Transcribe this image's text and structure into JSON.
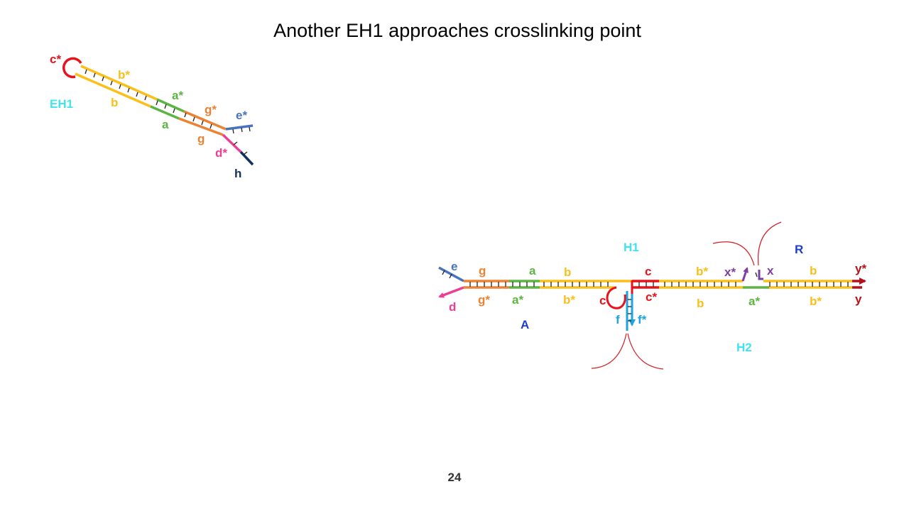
{
  "title": "Another EH1 approaches crosslinking point",
  "page_number": "24",
  "colors": {
    "red": "#e8121c",
    "yellow": "#fbbf1a",
    "green": "#5cb443",
    "orange": "#ec8233",
    "blue": "#4874be",
    "pink": "#ec3e93",
    "navy": "#13305f",
    "cyan": "#3fe4f0",
    "darkblue": "#1e3ec8",
    "lightblue": "#1ea3df",
    "purple": "#7c3da4",
    "darkred": "#b4121a",
    "tick": "#222222",
    "arc": "#d41c24"
  },
  "eh1_labels": {
    "c_star": "c*",
    "b_star": "b*",
    "b": "b",
    "name": "EH1",
    "a_star": "a*",
    "a": "a",
    "g_star": "g*",
    "g": "g",
    "e_star": "e*",
    "d_star": "d*",
    "h": "h"
  },
  "complex_labels": {
    "H1": "H1",
    "R": "R",
    "H2": "H2",
    "A": "A",
    "e": "e",
    "g": "g",
    "a": "a",
    "b": "b",
    "c": "c",
    "b_star_top": "b*",
    "x_star": "x*",
    "x": "x",
    "b_top_right": "b",
    "y_star": "y*",
    "d": "d",
    "g_star": "g*",
    "a_star": "a*",
    "b_star": "b*",
    "c_loop": "c",
    "c_star": "c*",
    "b_bottom": "b",
    "a_star_right": "a*",
    "b_star_right": "b*",
    "y": "y",
    "f": "f",
    "f_star": "f*"
  }
}
